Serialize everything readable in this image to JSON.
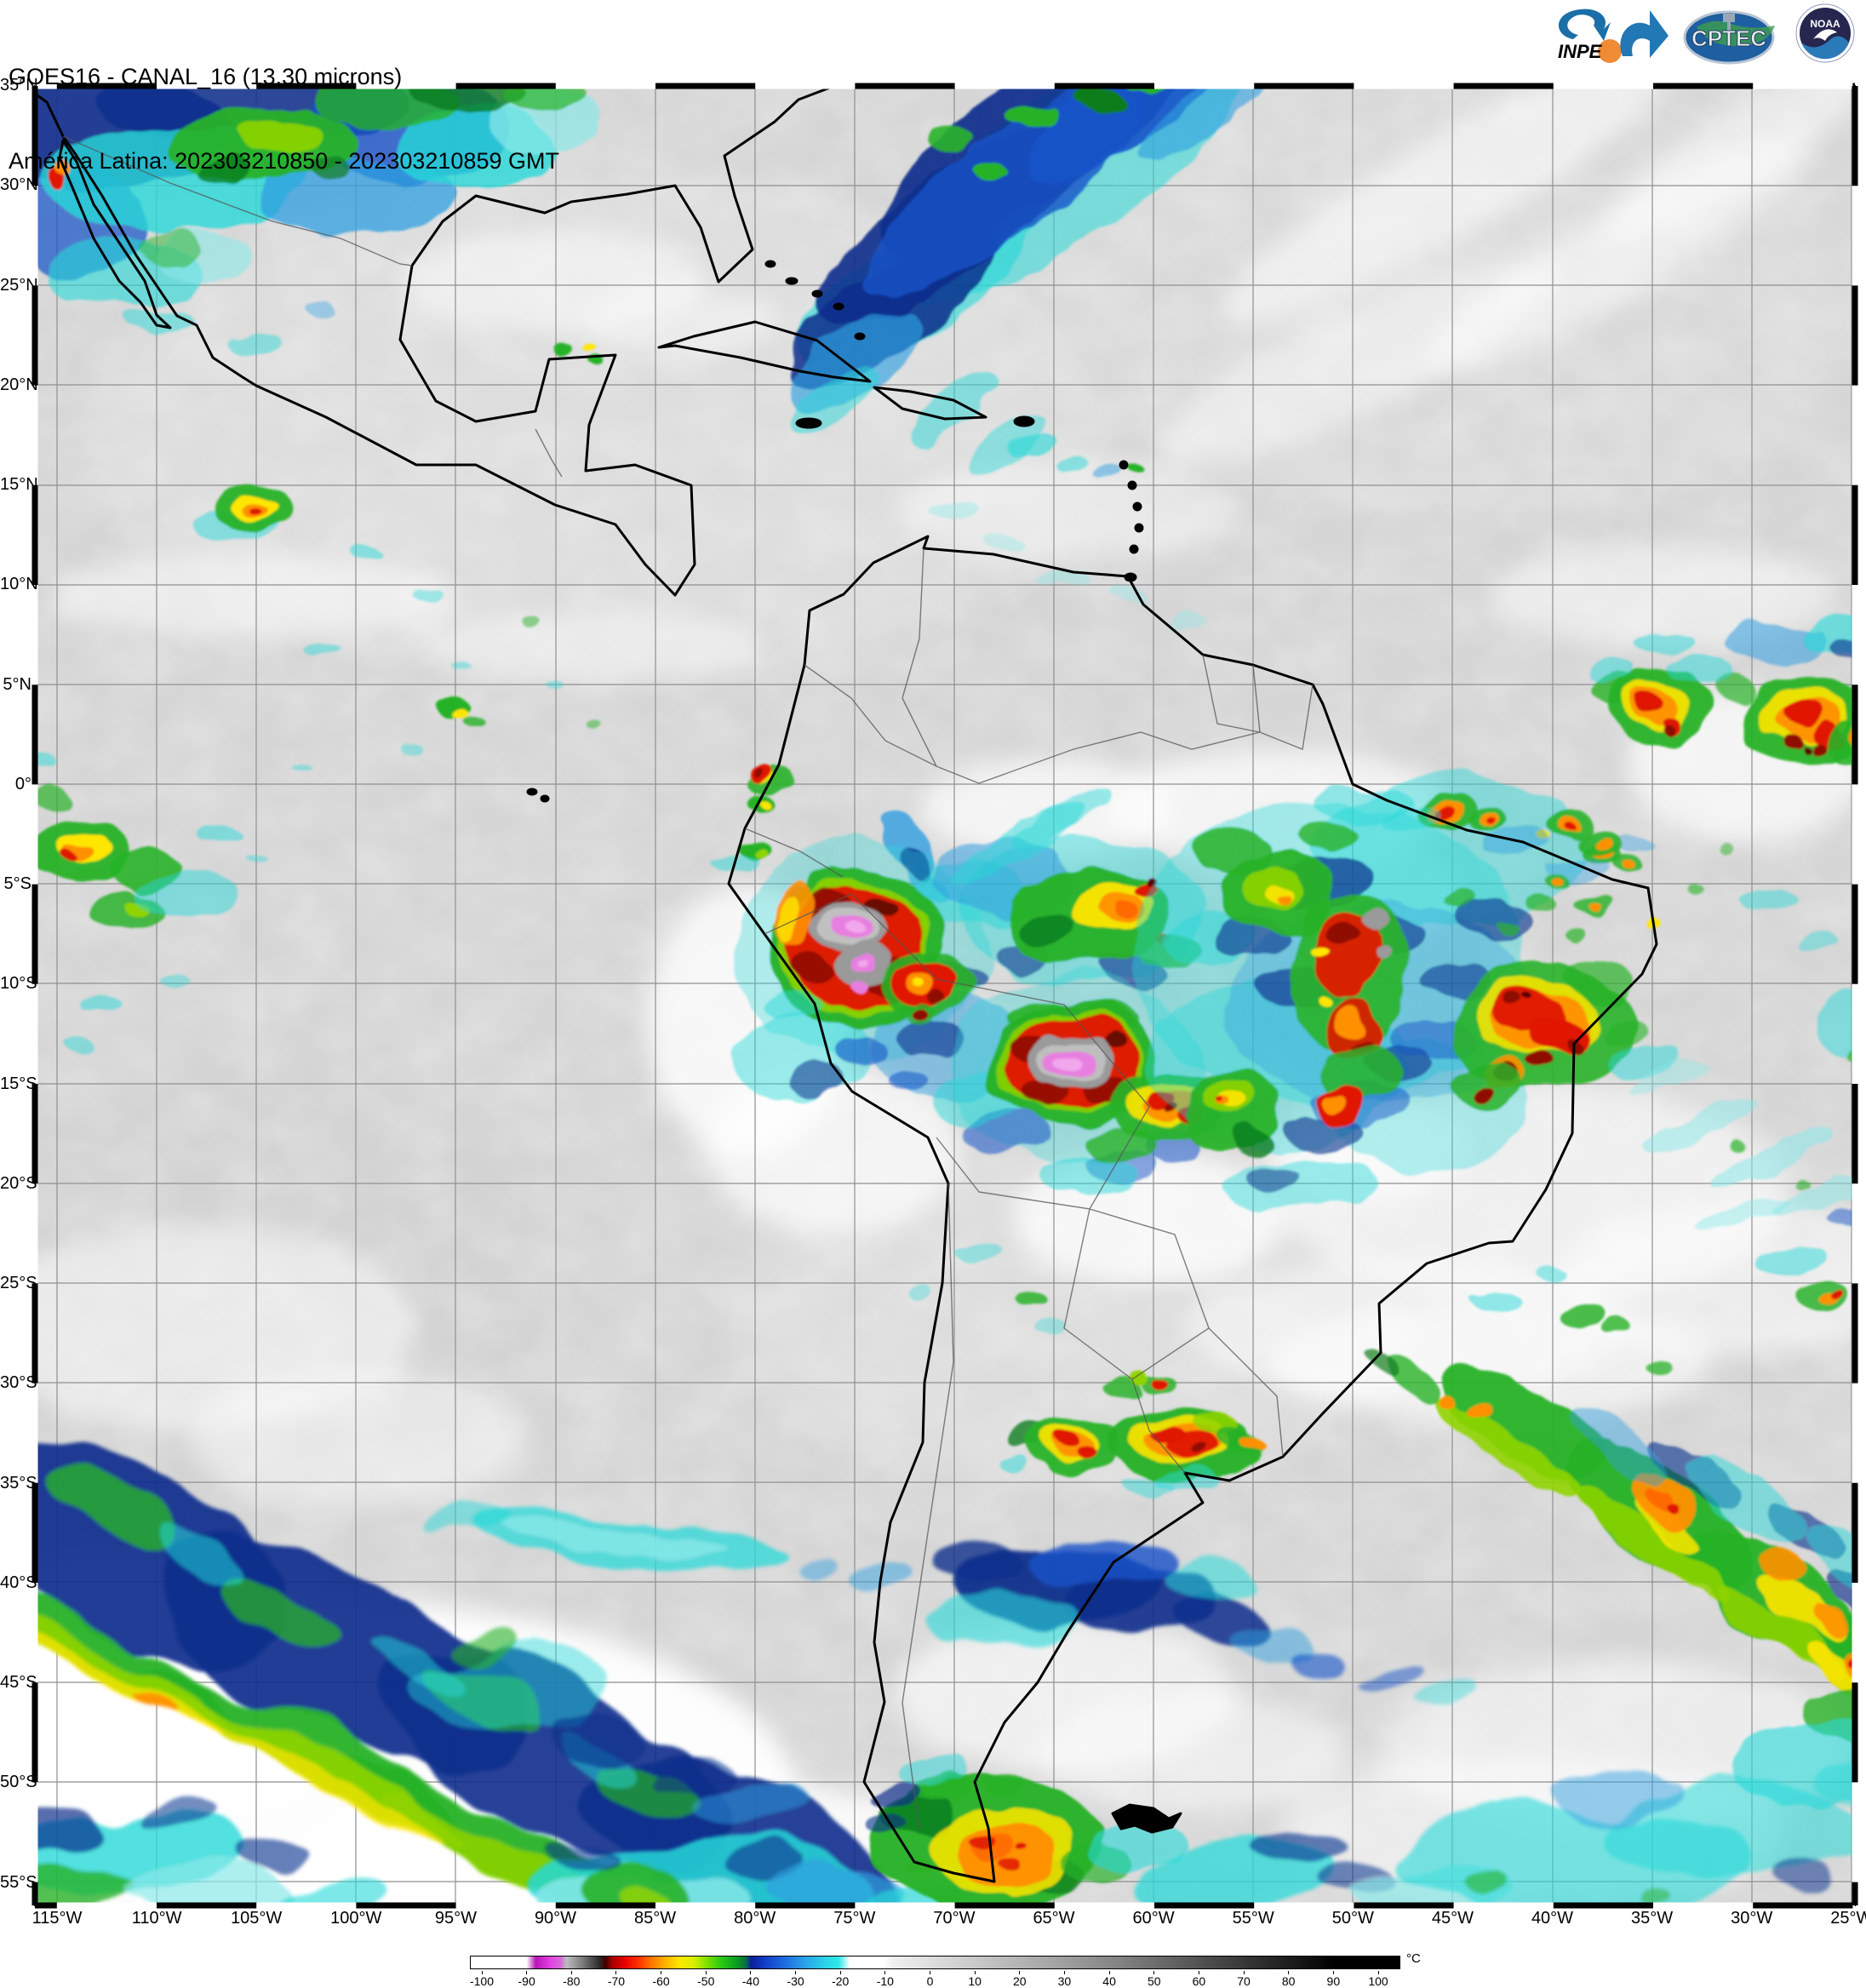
{
  "header": {
    "line1": "GOES16 - CANAL_16 (13.30 microns)",
    "line2": "América Latina: 202303210850 - 202303210859 GMT"
  },
  "logos": {
    "inpe": "INPE",
    "cptec": "CPTEC",
    "noaa": "NOAA"
  },
  "map": {
    "lat_labels": [
      "35°N",
      "30°N",
      "25°N",
      "20°N",
      "15°N",
      "10°N",
      "5°N",
      "0°",
      "5°S",
      "10°S",
      "15°S",
      "20°S",
      "25°S",
      "30°S",
      "35°S",
      "40°S",
      "45°S",
      "50°S",
      "55°S"
    ],
    "lon_labels": [
      "115°W",
      "110°W",
      "105°W",
      "100°W",
      "95°W",
      "90°W",
      "85°W",
      "80°W",
      "75°W",
      "70°W",
      "65°W",
      "60°W",
      "55°W",
      "50°W",
      "45°W",
      "40°W",
      "35°W",
      "30°W",
      "25°W"
    ]
  },
  "colorbar": {
    "unit": "°C",
    "ticks": [
      "-100",
      "-90",
      "-80",
      "-70",
      "-60",
      "-50",
      "-40",
      "-30",
      "-20",
      "-10",
      "0",
      "10",
      "20",
      "30",
      "40",
      "50",
      "60",
      "70",
      "80",
      "90",
      "100"
    ],
    "gradient": [
      [
        0,
        "#ffffff"
      ],
      [
        6,
        "#ffffff"
      ],
      [
        7,
        "#b517b5"
      ],
      [
        8.5,
        "#e23fe2"
      ],
      [
        9.7,
        "#d86ad8"
      ],
      [
        10.3,
        "#bdbdbd"
      ],
      [
        12,
        "#7d7d7d"
      ],
      [
        13.8,
        "#2e2e2e"
      ],
      [
        14.5,
        "#3c0000"
      ],
      [
        15.2,
        "#a50000"
      ],
      [
        16.5,
        "#e60000"
      ],
      [
        18,
        "#ff2d00"
      ],
      [
        19.5,
        "#ff7800"
      ],
      [
        21,
        "#ffb300"
      ],
      [
        22.5,
        "#ffe600"
      ],
      [
        24,
        "#d8f000"
      ],
      [
        25.5,
        "#7adf00"
      ],
      [
        27,
        "#2bc816"
      ],
      [
        28.6,
        "#0b9e20"
      ],
      [
        29.6,
        "#0b6e46"
      ],
      [
        30.2,
        "#0a1f9a"
      ],
      [
        32,
        "#1246cd"
      ],
      [
        34,
        "#1f71e0"
      ],
      [
        36,
        "#2aa3e8"
      ],
      [
        38,
        "#2bd0e8"
      ],
      [
        39.6,
        "#30e8e8"
      ],
      [
        40.2,
        "#90f4f4"
      ],
      [
        40.8,
        "#ffffff"
      ],
      [
        44.5,
        "#ffffff"
      ],
      [
        45.5,
        "#efefef"
      ],
      [
        50,
        "#dcdcdc"
      ],
      [
        55,
        "#c6c6c6"
      ],
      [
        60,
        "#b0b0b0"
      ],
      [
        65,
        "#9a9a9a"
      ],
      [
        70,
        "#828282"
      ],
      [
        75,
        "#666666"
      ],
      [
        80,
        "#4a4a4a"
      ],
      [
        85,
        "#2e2e2e"
      ],
      [
        90,
        "#121212"
      ],
      [
        93,
        "#000000"
      ],
      [
        100,
        "#000000"
      ]
    ],
    "key_colors": {
      "coldest_core": "#e77fe0",
      "overshoot_gray": "#9a9a9a",
      "deep_convection_red": "#e01800",
      "strong_orange": "#ff9000",
      "cold_yellow": "#ffe600",
      "cold_green": "#28b228",
      "mid_navy": "#0a2e8c",
      "mid_cyan": "#27d8d8",
      "warm_gray_background": "#d6d6d6"
    }
  }
}
